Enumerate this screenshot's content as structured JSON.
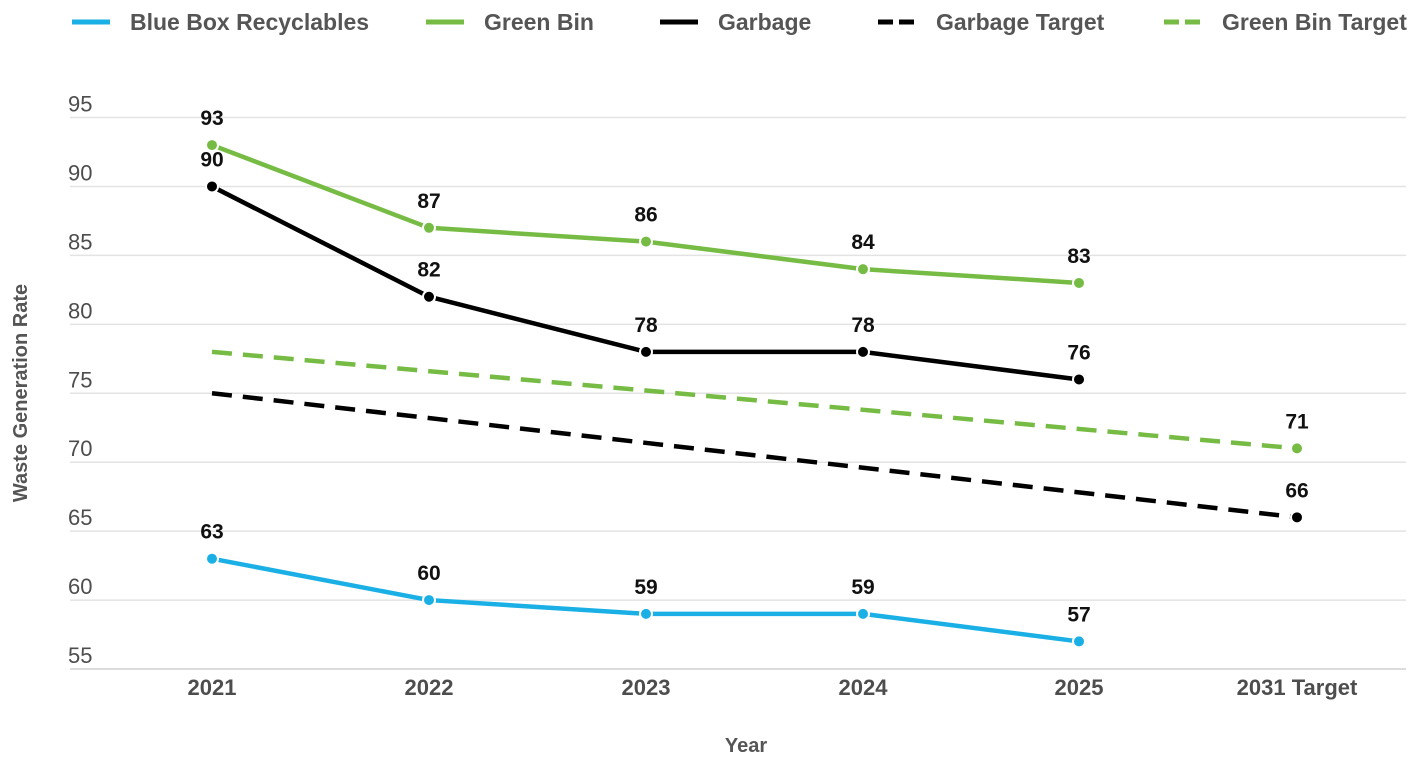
{
  "chart_data": {
    "type": "line",
    "categories": [
      "2021",
      "2022",
      "2023",
      "2024",
      "2025",
      "2031 Target"
    ],
    "xlabel": "Year",
    "ylabel": "Waste Generation Rate",
    "ylim": [
      53,
      96
    ],
    "yticks": [
      55,
      60,
      65,
      70,
      75,
      80,
      85,
      90,
      95
    ],
    "grid": true,
    "legend_position": "top",
    "series": [
      {
        "name": "Blue Box Recyclables",
        "color": "#1ab0e6",
        "style": "solid",
        "labels": true,
        "values": [
          63,
          60,
          59,
          59,
          57,
          null
        ]
      },
      {
        "name": "Green Bin",
        "color": "#76bc44",
        "style": "solid",
        "labels": true,
        "values": [
          93,
          87,
          86,
          84,
          83,
          null
        ]
      },
      {
        "name": "Garbage",
        "color": "#000000",
        "style": "solid",
        "labels": true,
        "values": [
          90,
          82,
          78,
          78,
          76,
          null
        ]
      },
      {
        "name": "Garbage Target",
        "color": "#000000",
        "style": "dashed",
        "labels": false,
        "values": [
          75,
          null,
          null,
          null,
          null,
          66
        ],
        "end_label": 66
      },
      {
        "name": "Green Bin Target",
        "color": "#76bc44",
        "style": "dashed",
        "labels": false,
        "values": [
          78,
          null,
          null,
          null,
          null,
          71
        ],
        "end_label": 71
      }
    ]
  }
}
